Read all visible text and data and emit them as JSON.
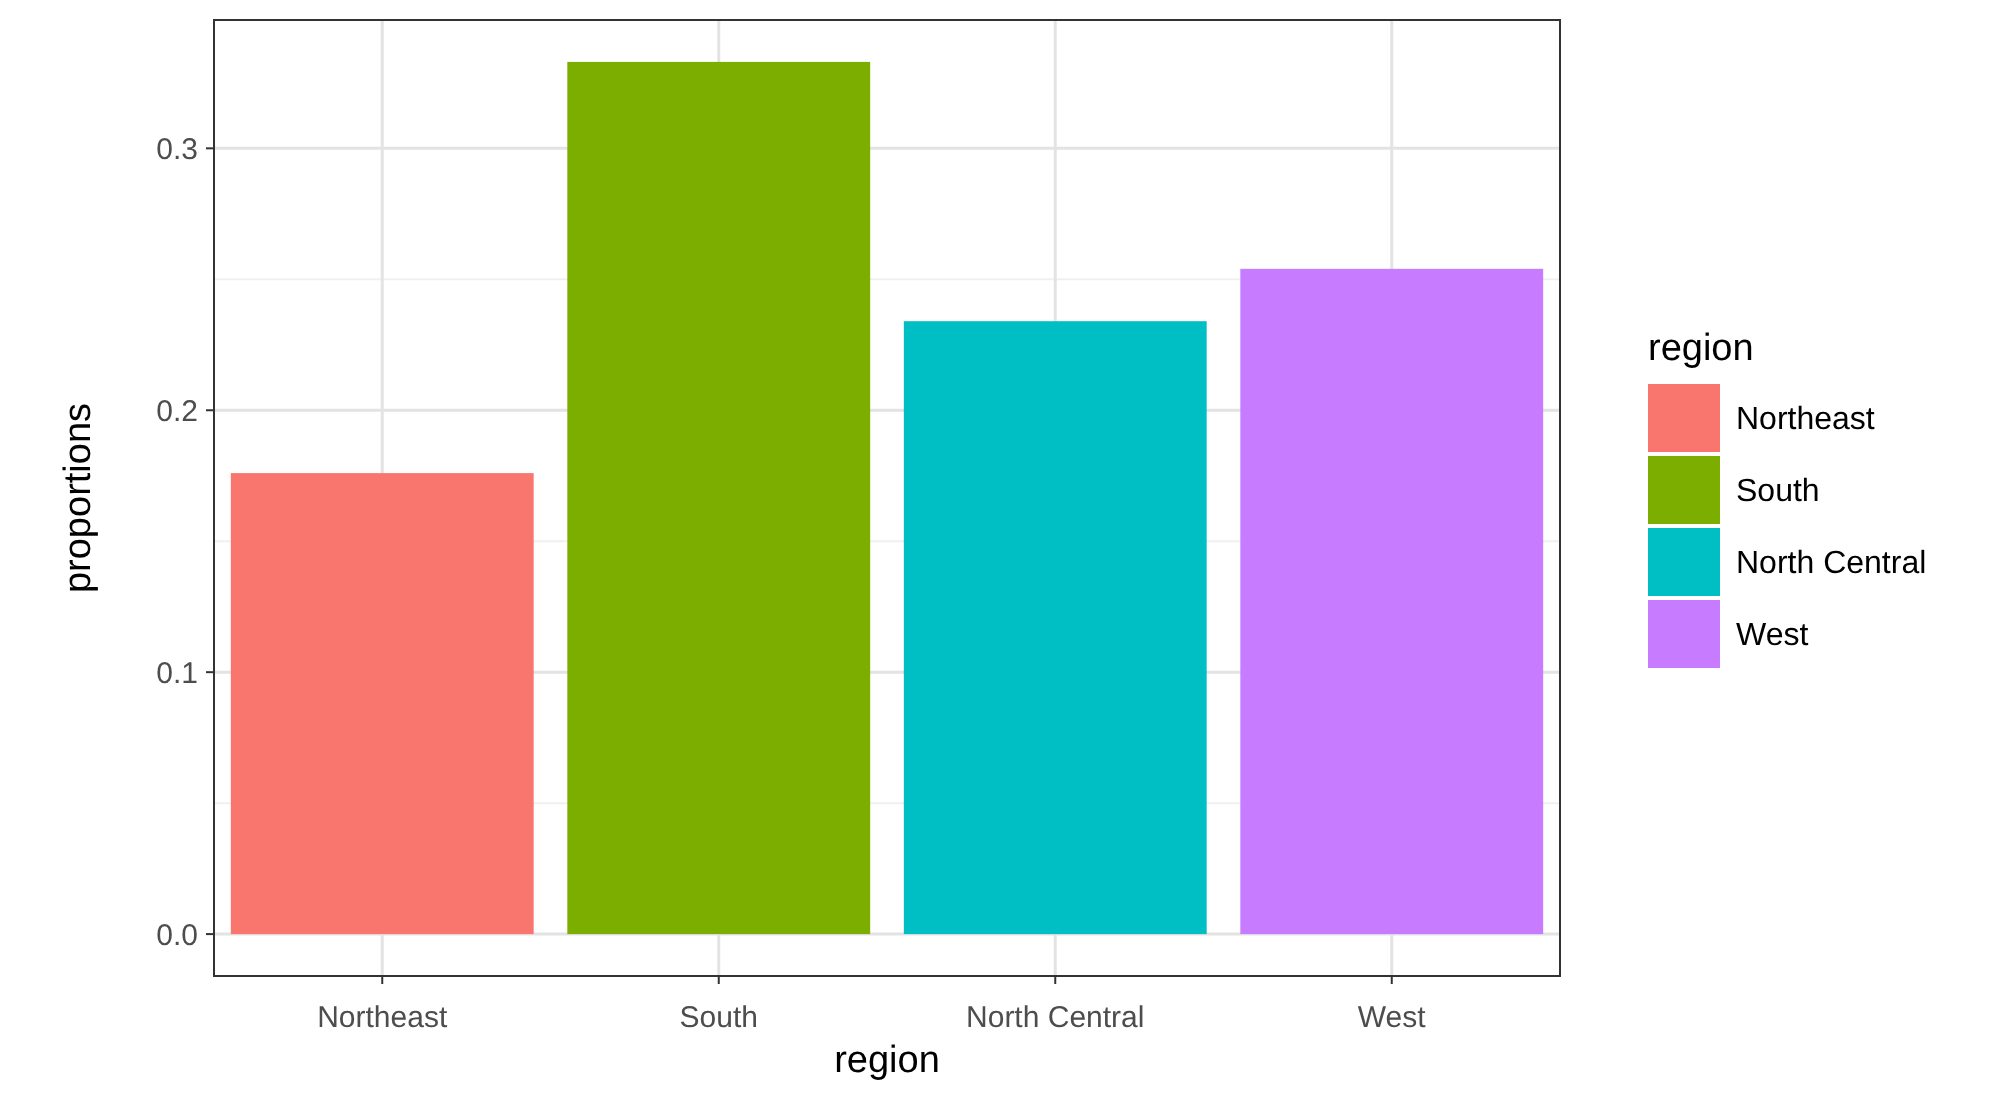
{
  "chart_data": {
    "type": "bar",
    "xlabel": "region",
    "ylabel": "proportions",
    "legend_title": "region",
    "categories": [
      "Northeast",
      "South",
      "North Central",
      "West"
    ],
    "series": [
      {
        "name": "Northeast",
        "color": "#f8766d",
        "values": [
          0.176,
          null,
          null,
          null
        ]
      },
      {
        "name": "South",
        "color": "#7cae00",
        "values": [
          null,
          0.333,
          null,
          null
        ]
      },
      {
        "name": "North Central",
        "color": "#00bfc4",
        "values": [
          null,
          null,
          0.234,
          null
        ]
      },
      {
        "name": "West",
        "color": "#c77cff",
        "values": [
          null,
          null,
          null,
          0.254
        ]
      }
    ],
    "ylim": [
      -0.016,
      0.349
    ],
    "yticks": [
      {
        "value": 0,
        "label": "0.0"
      },
      0.1,
      0.2,
      0.3
    ],
    "grid": true,
    "legend": "right"
  }
}
